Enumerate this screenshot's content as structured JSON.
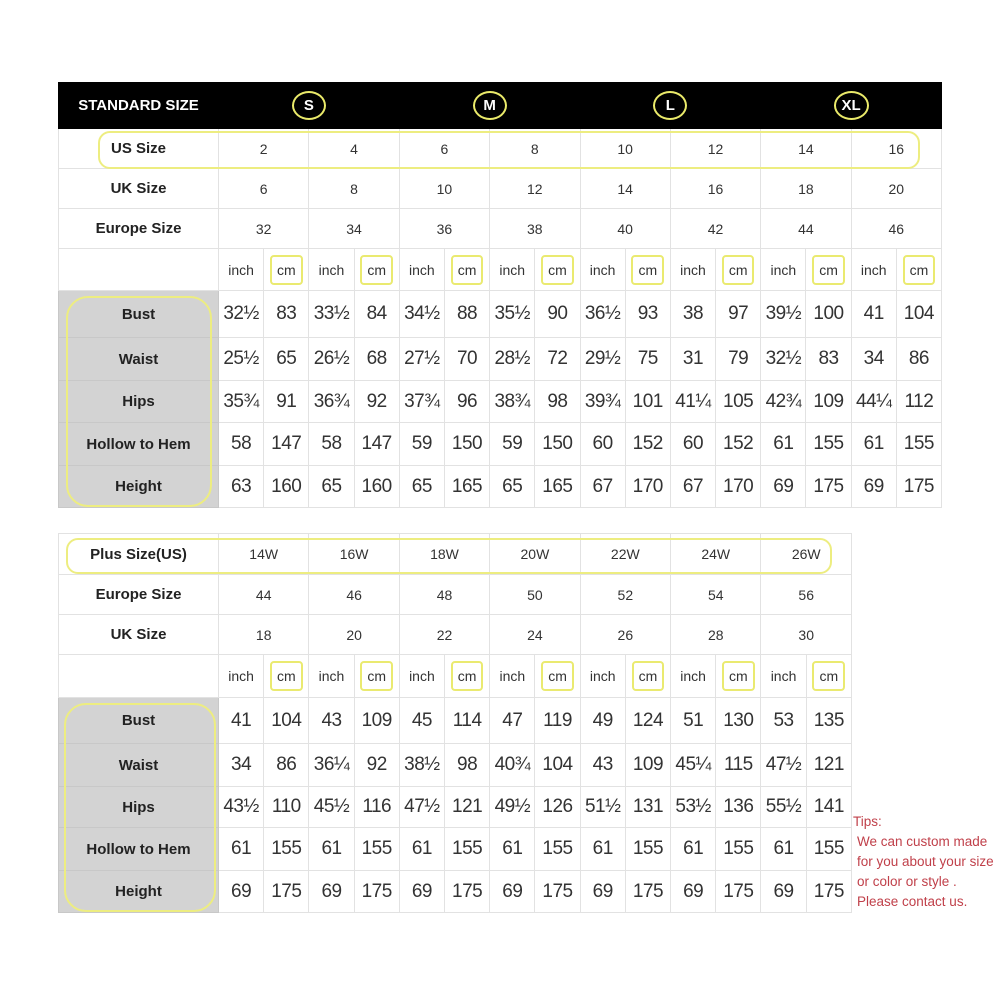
{
  "standard": {
    "header_label": "STANDARD SIZE",
    "size_groups": [
      "S",
      "M",
      "L",
      "XL"
    ],
    "size_rows": [
      {
        "label": "US Size",
        "values": [
          "2",
          "4",
          "6",
          "8",
          "10",
          "12",
          "14",
          "16"
        ]
      },
      {
        "label": "UK Size",
        "values": [
          "6",
          "8",
          "10",
          "12",
          "14",
          "16",
          "18",
          "20"
        ]
      },
      {
        "label": "Europe Size",
        "values": [
          "32",
          "34",
          "36",
          "38",
          "40",
          "42",
          "44",
          "46"
        ]
      }
    ],
    "unit_inch": "inch",
    "unit_cm": "cm",
    "measurements": [
      {
        "label": "Bust",
        "values": [
          "32½",
          "83",
          "33½",
          "84",
          "34½",
          "88",
          "35½",
          "90",
          "36½",
          "93",
          "38",
          "97",
          "39½",
          "100",
          "41",
          "104"
        ]
      },
      {
        "label": "Waist",
        "values": [
          "25½",
          "65",
          "26½",
          "68",
          "27½",
          "70",
          "28½",
          "72",
          "29½",
          "75",
          "31",
          "79",
          "32½",
          "83",
          "34",
          "86"
        ]
      },
      {
        "label": "Hips",
        "values": [
          "35¾",
          "91",
          "36¾",
          "92",
          "37¾",
          "96",
          "38¾",
          "98",
          "39¾",
          "101",
          "41¼",
          "105",
          "42¾",
          "109",
          "44¼",
          "112"
        ]
      },
      {
        "label": "Hollow to Hem",
        "values": [
          "58",
          "147",
          "58",
          "147",
          "59",
          "150",
          "59",
          "150",
          "60",
          "152",
          "60",
          "152",
          "61",
          "155",
          "61",
          "155"
        ]
      },
      {
        "label": "Height",
        "values": [
          "63",
          "160",
          "65",
          "160",
          "65",
          "165",
          "65",
          "165",
          "67",
          "170",
          "67",
          "170",
          "69",
          "175",
          "69",
          "175"
        ]
      }
    ]
  },
  "plus": {
    "size_rows": [
      {
        "label": "Plus Size(US)",
        "values": [
          "14W",
          "16W",
          "18W",
          "20W",
          "22W",
          "24W",
          "26W"
        ]
      },
      {
        "label": "Europe Size",
        "values": [
          "44",
          "46",
          "48",
          "50",
          "52",
          "54",
          "56"
        ]
      },
      {
        "label": "UK Size",
        "values": [
          "18",
          "20",
          "22",
          "24",
          "26",
          "28",
          "30"
        ]
      }
    ],
    "unit_inch": "inch",
    "unit_cm": "cm",
    "measurements": [
      {
        "label": "Bust",
        "values": [
          "41",
          "104",
          "43",
          "109",
          "45",
          "114",
          "47",
          "119",
          "49",
          "124",
          "51",
          "130",
          "53",
          "135"
        ]
      },
      {
        "label": "Waist",
        "values": [
          "34",
          "86",
          "36¼",
          "92",
          "38½",
          "98",
          "40¾",
          "104",
          "43",
          "109",
          "45¼",
          "115",
          "47½",
          "121"
        ]
      },
      {
        "label": "Hips",
        "values": [
          "43½",
          "110",
          "45½",
          "116",
          "47½",
          "121",
          "49½",
          "126",
          "51½",
          "131",
          "53½",
          "136",
          "55½",
          "141"
        ]
      },
      {
        "label": "Hollow to Hem",
        "values": [
          "61",
          "155",
          "61",
          "155",
          "61",
          "155",
          "61",
          "155",
          "61",
          "155",
          "61",
          "155",
          "61",
          "155"
        ]
      },
      {
        "label": "Height",
        "values": [
          "69",
          "175",
          "69",
          "175",
          "69",
          "175",
          "69",
          "175",
          "69",
          "175",
          "69",
          "175",
          "69",
          "175"
        ]
      }
    ]
  },
  "tips": {
    "title": "Tips:",
    "lines": [
      "We can custom made",
      "for you about your size",
      "or color or style .",
      "Please contact us."
    ]
  },
  "colors": {
    "highlight": "#eded80",
    "header_bg": "#000000",
    "label_bg": "#d3d3d3",
    "tips_text": "#c0404a"
  }
}
